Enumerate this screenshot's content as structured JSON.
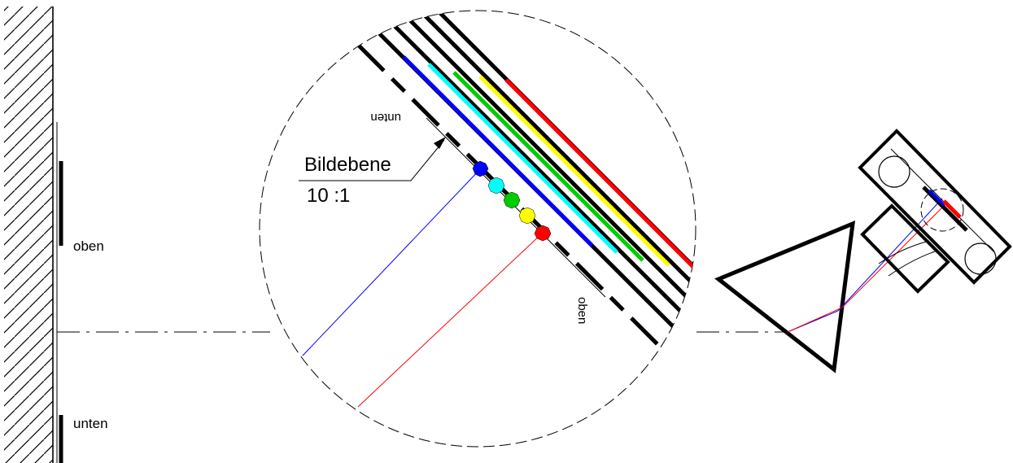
{
  "labels": {
    "oben": "oben",
    "unten": "unten",
    "detail_unten": "unten",
    "detail_oben": "oben",
    "bildebene": "Bildebene",
    "scale": "10 :1"
  },
  "colors": {
    "blue": "#0000ff",
    "cyan": "#00ffff",
    "green": "#00cc00",
    "yellow": "#ffff00",
    "red": "#ff0000",
    "black": "#000000"
  }
}
